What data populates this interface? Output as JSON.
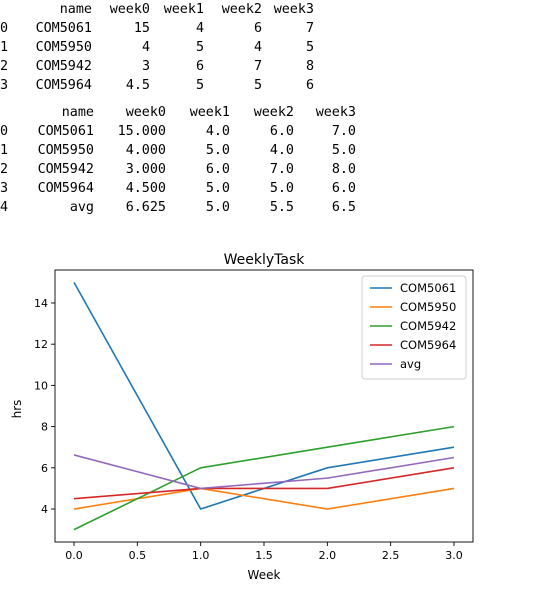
{
  "table1": {
    "columns": [
      "name",
      "week0",
      "week1",
      "week2",
      "week3"
    ],
    "rows": [
      [
        "0",
        "COM5061",
        "15",
        "4",
        "6",
        "7"
      ],
      [
        "1",
        "COM5950",
        "4",
        "5",
        "4",
        "5"
      ],
      [
        "2",
        "COM5942",
        "3",
        "6",
        "7",
        "8"
      ],
      [
        "3",
        "COM5964",
        "4.5",
        "5",
        "5",
        "6"
      ]
    ]
  },
  "table2": {
    "columns": [
      "name",
      "week0",
      "week1",
      "week2",
      "week3"
    ],
    "rows": [
      [
        "0",
        "COM5061",
        "15.000",
        "4.0",
        "6.0",
        "7.0"
      ],
      [
        "1",
        "COM5950",
        "4.000",
        "5.0",
        "4.0",
        "5.0"
      ],
      [
        "2",
        "COM5942",
        "3.000",
        "6.0",
        "7.0",
        "8.0"
      ],
      [
        "3",
        "COM5964",
        "4.500",
        "5.0",
        "5.0",
        "6.0"
      ],
      [
        "4",
        "avg",
        "6.625",
        "5.0",
        "5.5",
        "6.5"
      ]
    ]
  },
  "chart_data": {
    "type": "line",
    "title": "WeeklyTask",
    "xlabel": "Week",
    "ylabel": "hrs",
    "x": [
      0,
      1,
      2,
      3
    ],
    "xlim": [
      -0.15,
      3.15
    ],
    "ylim": [
      2.4,
      15.6
    ],
    "xticks": [
      "0.0",
      "0.5",
      "1.0",
      "1.5",
      "2.0",
      "2.5",
      "3.0"
    ],
    "xtick_values": [
      0,
      0.5,
      1,
      1.5,
      2,
      2.5,
      3
    ],
    "yticks": [
      "4",
      "6",
      "8",
      "10",
      "12",
      "14"
    ],
    "ytick_values": [
      4,
      6,
      8,
      10,
      12,
      14
    ],
    "grid": false,
    "legend_position": "top-right",
    "series": [
      {
        "name": "COM5061",
        "values": [
          15,
          4,
          6,
          7
        ],
        "color": "#1f77b4"
      },
      {
        "name": "COM5950",
        "values": [
          4,
          5,
          4,
          5
        ],
        "color": "#ff7f0e"
      },
      {
        "name": "COM5942",
        "values": [
          3,
          6,
          7,
          8
        ],
        "color": "#2ca02c"
      },
      {
        "name": "COM5964",
        "values": [
          4.5,
          5,
          5,
          6
        ],
        "color": "#d62728"
      },
      {
        "name": "avg",
        "values": [
          6.625,
          5,
          5.5,
          6.5
        ],
        "color": "#9467bd"
      }
    ]
  }
}
